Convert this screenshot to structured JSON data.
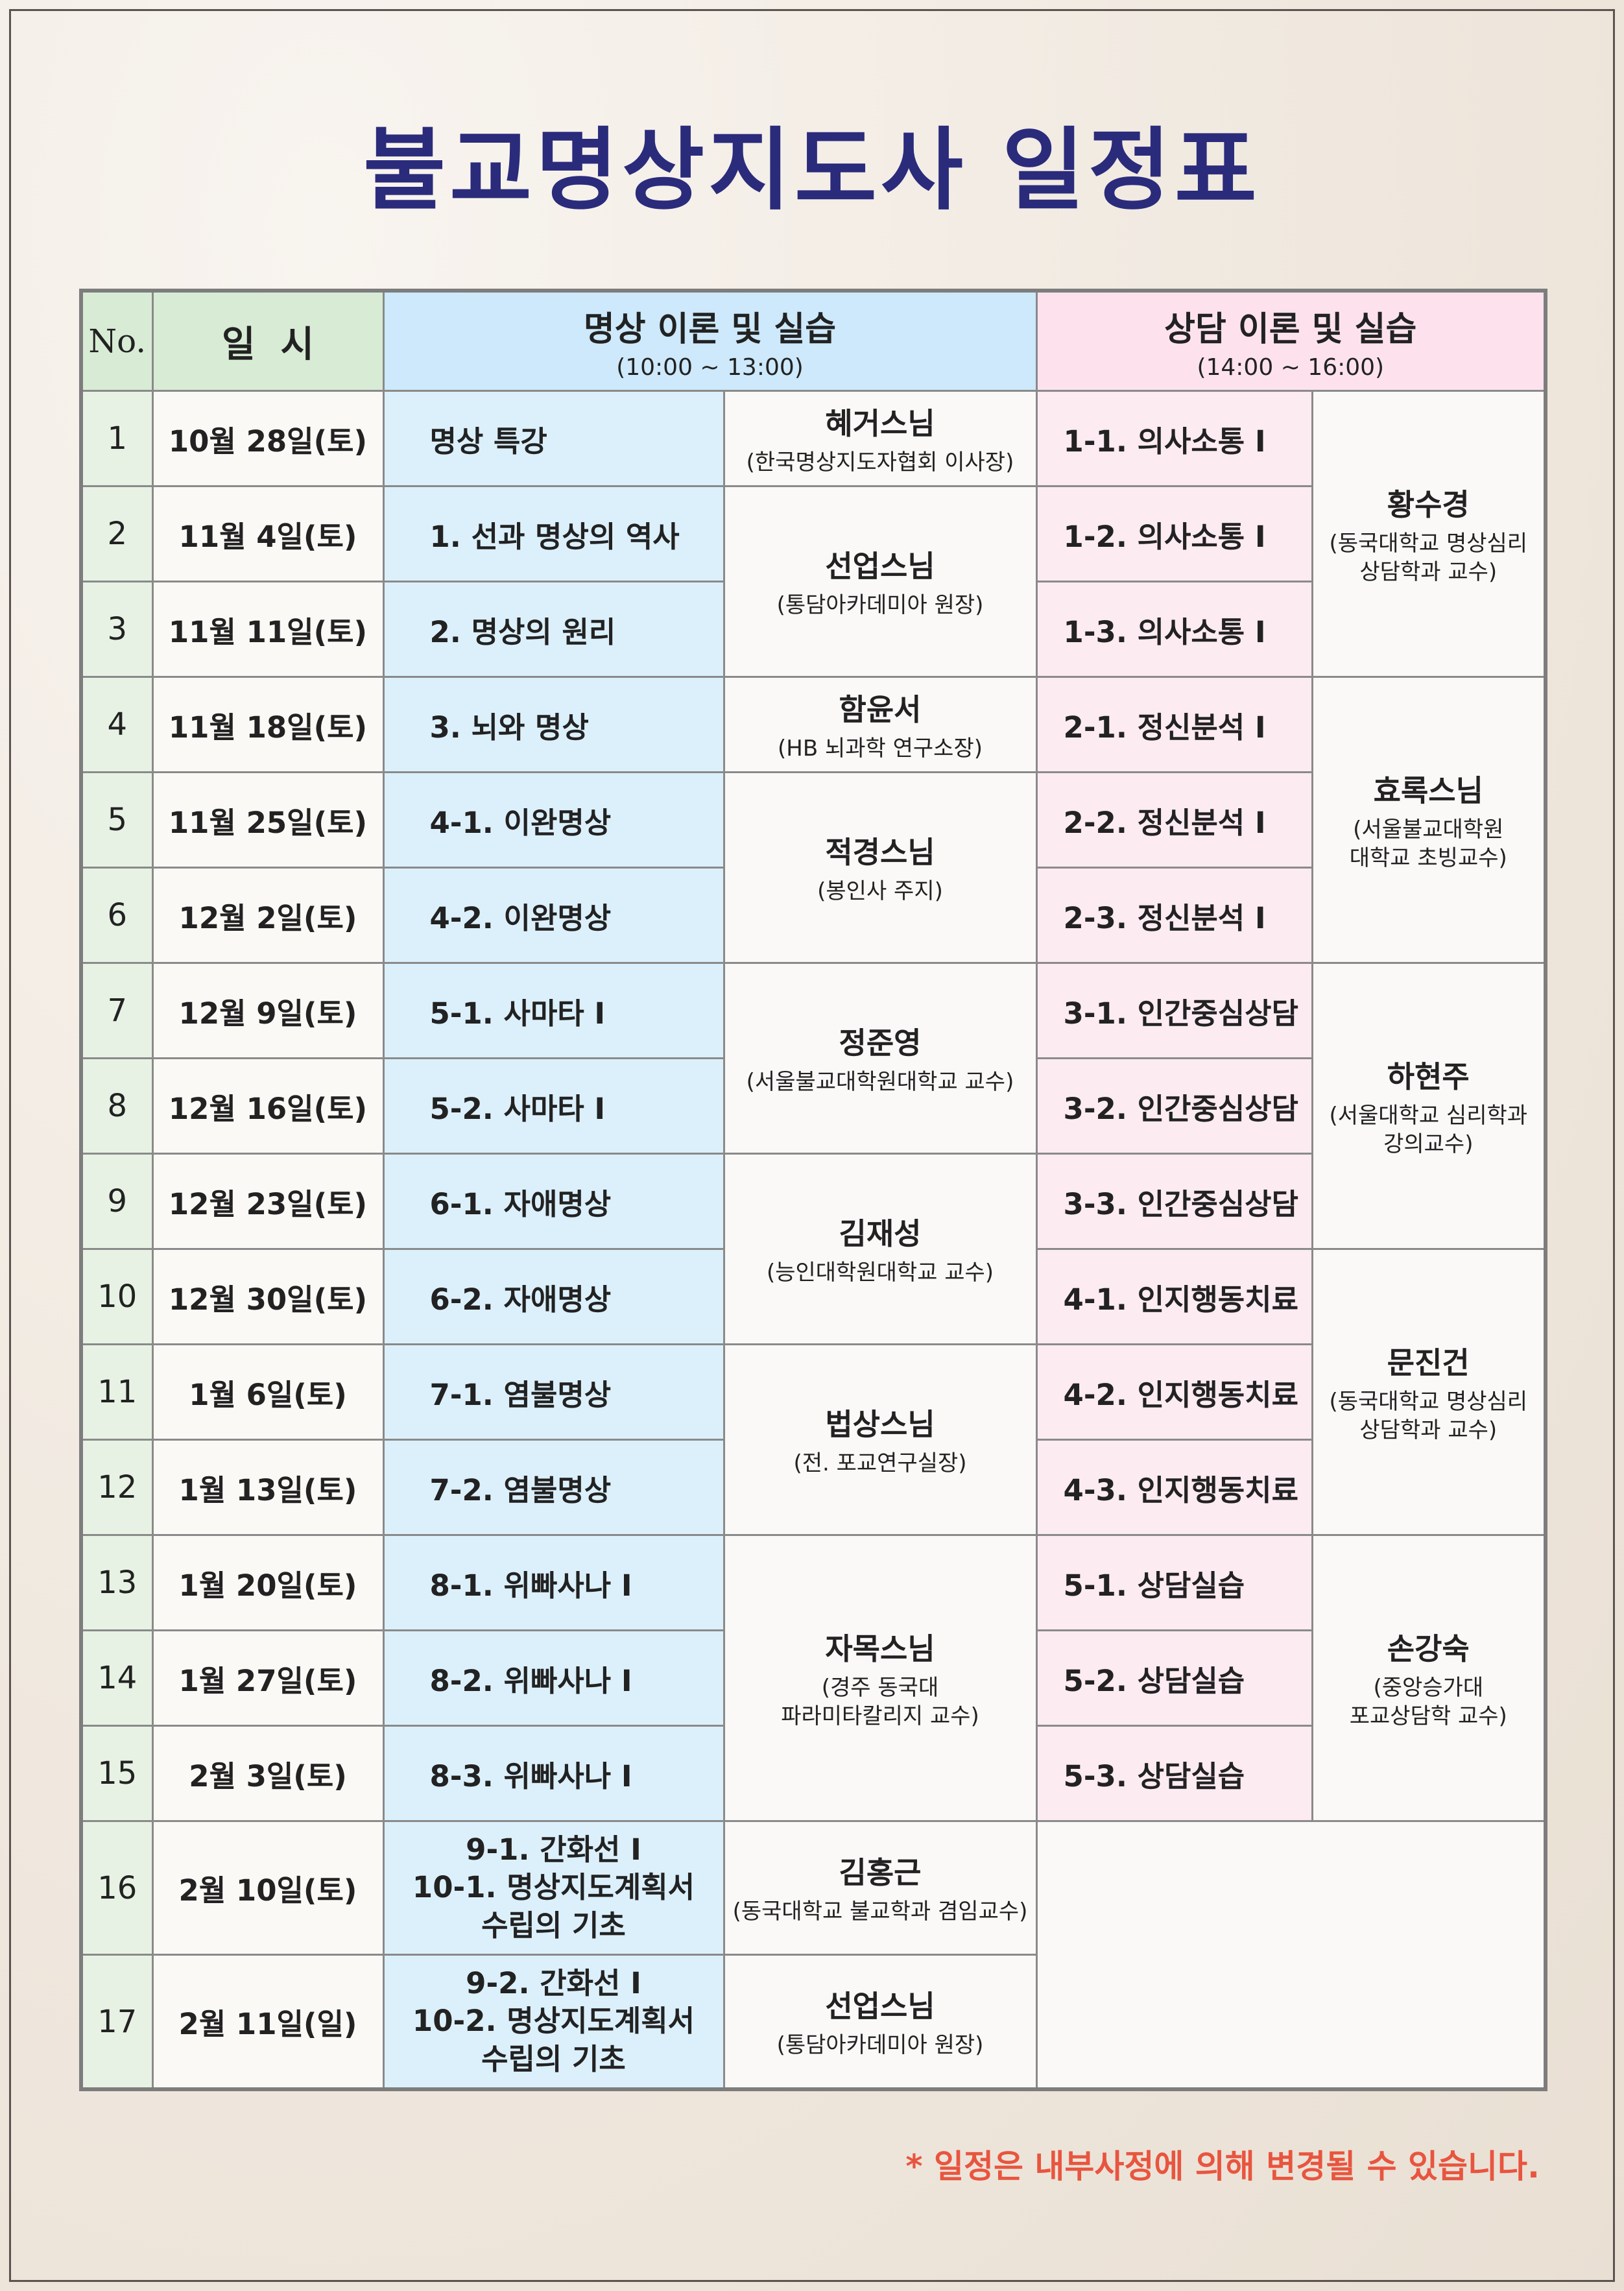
{
  "title": "불교명상지도사 일정표",
  "header": {
    "no": "No.",
    "date": "일  시",
    "meditation": "명상 이론 및 실습",
    "meditation_time": "(10:00 ~ 13:00)",
    "counseling": "상담 이론 및 실습",
    "counseling_time": "(14:00 ~ 16:00)"
  },
  "rows": [
    {
      "no": "1",
      "date": "10월 28일(토)",
      "mtopic": "명상 특강",
      "ctopic": "1-1. 의사소통 I"
    },
    {
      "no": "2",
      "date": "11월 4일(토)",
      "mtopic": "1. 선과 명상의 역사",
      "ctopic": "1-2. 의사소통 I"
    },
    {
      "no": "3",
      "date": "11월 11일(토)",
      "mtopic": "2. 명상의 원리",
      "ctopic": "1-3. 의사소통 I"
    },
    {
      "no": "4",
      "date": "11월 18일(토)",
      "mtopic": "3. 뇌와 명상",
      "ctopic": "2-1. 정신분석 I"
    },
    {
      "no": "5",
      "date": "11월 25일(토)",
      "mtopic": "4-1. 이완명상",
      "ctopic": "2-2. 정신분석 I"
    },
    {
      "no": "6",
      "date": "12월 2일(토)",
      "mtopic": "4-2. 이완명상",
      "ctopic": "2-3. 정신분석 I"
    },
    {
      "no": "7",
      "date": "12월 9일(토)",
      "mtopic": "5-1. 사마타 I",
      "ctopic": "3-1. 인간중심상담"
    },
    {
      "no": "8",
      "date": "12월 16일(토)",
      "mtopic": "5-2. 사마타 I",
      "ctopic": "3-2. 인간중심상담"
    },
    {
      "no": "9",
      "date": "12월 23일(토)",
      "mtopic": "6-1. 자애명상",
      "ctopic": "3-3. 인간중심상담"
    },
    {
      "no": "10",
      "date": "12월 30일(토)",
      "mtopic": "6-2. 자애명상",
      "ctopic": "4-1. 인지행동치료"
    },
    {
      "no": "11",
      "date": "1월 6일(토)",
      "mtopic": "7-1. 염불명상",
      "ctopic": "4-2. 인지행동치료"
    },
    {
      "no": "12",
      "date": "1월 13일(토)",
      "mtopic": "7-2. 염불명상",
      "ctopic": "4-3. 인지행동치료"
    },
    {
      "no": "13",
      "date": "1월 20일(토)",
      "mtopic": "8-1. 위빠사나 I",
      "ctopic": "5-1. 상담실습"
    },
    {
      "no": "14",
      "date": "1월 27일(토)",
      "mtopic": "8-2. 위빠사나 I",
      "ctopic": "5-2. 상담실습"
    },
    {
      "no": "15",
      "date": "2월 3일(토)",
      "mtopic": "8-3. 위빠사나 I",
      "ctopic": "5-3. 상담실습"
    },
    {
      "no": "16",
      "date": "2월 10일(토)",
      "mtopic_lines": [
        "9-1. 간화선 I",
        "10-1. 명상지도계획서",
        "수립의 기초"
      ]
    },
    {
      "no": "17",
      "date": "2월 11일(일)",
      "mtopic_lines": [
        "9-2. 간화선 I",
        "10-2. 명상지도계획서",
        "수립의 기초"
      ]
    }
  ],
  "med_instructors": [
    {
      "name": "혜거스님",
      "aff": "(한국명상지도자협회 이사장)"
    },
    {
      "name": "선업스님",
      "aff": "(통담아카데미아 원장)"
    },
    {
      "name": "함윤서",
      "aff": "(HB 뇌과학 연구소장)"
    },
    {
      "name": "적경스님",
      "aff": "(봉인사 주지)"
    },
    {
      "name": "정준영",
      "aff": "(서울불교대학원대학교 교수)"
    },
    {
      "name": "김재성",
      "aff": "(능인대학원대학교 교수)"
    },
    {
      "name": "법상스님",
      "aff": "(전. 포교연구실장)"
    },
    {
      "name": "자목스님",
      "aff": "(경주 동국대",
      "aff2": "파라미타칼리지 교수)"
    },
    {
      "name": "김홍근",
      "aff": "(동국대학교 불교학과 겸임교수)"
    },
    {
      "name": "선업스님",
      "aff": "(통담아카데미아 원장)"
    }
  ],
  "cou_instructors": [
    {
      "name": "황수경",
      "aff": "(동국대학교 명상심리",
      "aff2": "상담학과 교수)"
    },
    {
      "name": "효록스님",
      "aff": "(서울불교대학원",
      "aff2": "대학교 초빙교수)"
    },
    {
      "name": "하현주",
      "aff": "(서울대학교 심리학과",
      "aff2": "강의교수)"
    },
    {
      "name": "문진건",
      "aff": "(동국대학교 명상심리",
      "aff2": "상담학과 교수)"
    },
    {
      "name": "손강숙",
      "aff": "(중앙승가대",
      "aff2": "포교상담학 교수)"
    }
  ],
  "note": "* 일정은 내부사정에 의해 변경될 수 있습니다.",
  "colors": {
    "title": "#2b2b7c",
    "note": "#e8553f",
    "meditation_bg": "#dcf0fc",
    "counseling_bg": "#fdebf2",
    "date_bg": "#e7f2e4"
  }
}
